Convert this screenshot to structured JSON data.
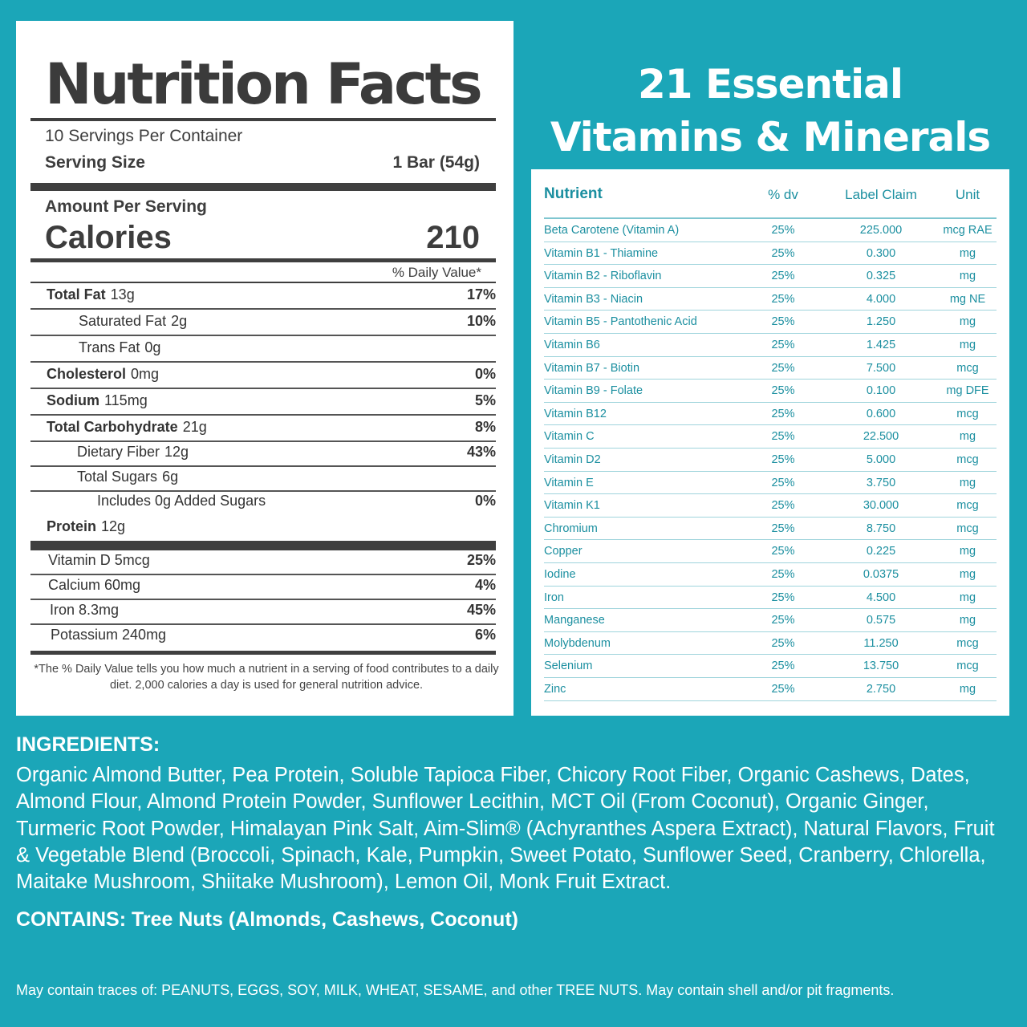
{
  "nutrition_facts": {
    "title": "Nutrition Facts",
    "servings_per_container": "10 Servings Per Container",
    "serving_size_label": "Serving Size",
    "serving_size_value": "1 Bar (54g)",
    "amount_per_serving": "Amount Per Serving",
    "calories_label": "Calories",
    "calories_value": "210",
    "daily_value_header": "% Daily Value*",
    "rows": [
      {
        "label": "Total Fat",
        "amount": "13g",
        "pct": "17%"
      },
      {
        "label": "Saturated Fat",
        "amount": "2g",
        "pct": "10%"
      },
      {
        "label": "Trans Fat",
        "amount": "0g",
        "pct": ""
      },
      {
        "label": "Cholesterol",
        "amount": "0mg",
        "pct": "0%"
      },
      {
        "label": "Sodium",
        "amount": "115mg",
        "pct": "5%"
      },
      {
        "label": "Total Carbohydrate",
        "amount": "21g",
        "pct": "8%"
      },
      {
        "label": "Dietary Fiber",
        "amount": "12g",
        "pct": "43%"
      },
      {
        "label": "Total Sugars",
        "amount": "6g",
        "pct": ""
      },
      {
        "label": "Includes 0g Added Sugars",
        "amount": "",
        "pct": "0%"
      },
      {
        "label": "Protein",
        "amount": "12g",
        "pct": ""
      }
    ],
    "vitamins": [
      {
        "label": "Vitamin D 5mcg",
        "pct": "25%"
      },
      {
        "label": "Calcium 60mg",
        "pct": "4%"
      },
      {
        "label": "Iron 8.3mg",
        "pct": "45%"
      },
      {
        "label": "Potassium 240mg",
        "pct": "6%"
      }
    ],
    "footnote": "*The % Daily Value tells you how much a nutrient in a serving of food contributes to a daily diet. 2,000 calories a day is used for general nutrition advice."
  },
  "vitamins_minerals": {
    "title_line1": "21 Essential",
    "title_line2": "Vitamins & Minerals",
    "headers": {
      "nutrient": "Nutrient",
      "dv": "% dv",
      "claim": "Label Claim",
      "unit": "Unit"
    },
    "rows": [
      {
        "n": "Beta Carotene (Vitamin A)",
        "dv": "25%",
        "claim": "225.000",
        "unit": "mcg RAE"
      },
      {
        "n": "Vitamin B1 - Thiamine",
        "dv": "25%",
        "claim": "0.300",
        "unit": "mg"
      },
      {
        "n": "Vitamin B2 - Riboflavin",
        "dv": "25%",
        "claim": "0.325",
        "unit": "mg"
      },
      {
        "n": "Vitamin B3 - Niacin",
        "dv": "25%",
        "claim": "4.000",
        "unit": "mg NE"
      },
      {
        "n": "Vitamin B5 - Pantothenic Acid",
        "dv": "25%",
        "claim": "1.250",
        "unit": "mg"
      },
      {
        "n": "Vitamin B6",
        "dv": "25%",
        "claim": "1.425",
        "unit": "mg"
      },
      {
        "n": "Vitamin B7 - Biotin",
        "dv": "25%",
        "claim": "7.500",
        "unit": "mcg"
      },
      {
        "n": "Vitamin B9 - Folate",
        "dv": "25%",
        "claim": "0.100",
        "unit": "mg DFE"
      },
      {
        "n": "Vitamin B12",
        "dv": "25%",
        "claim": "0.600",
        "unit": "mcg"
      },
      {
        "n": "Vitamin C",
        "dv": "25%",
        "claim": "22.500",
        "unit": "mg"
      },
      {
        "n": "Vitamin D2",
        "dv": "25%",
        "claim": "5.000",
        "unit": "mcg"
      },
      {
        "n": "Vitamin E",
        "dv": "25%",
        "claim": "3.750",
        "unit": "mg"
      },
      {
        "n": "Vitamin K1",
        "dv": "25%",
        "claim": "30.000",
        "unit": "mcg"
      },
      {
        "n": "Chromium",
        "dv": "25%",
        "claim": "8.750",
        "unit": "mcg"
      },
      {
        "n": "Copper",
        "dv": "25%",
        "claim": "0.225",
        "unit": "mg"
      },
      {
        "n": "Iodine",
        "dv": "25%",
        "claim": "0.0375",
        "unit": "mg"
      },
      {
        "n": "Iron",
        "dv": "25%",
        "claim": "4.500",
        "unit": "mg"
      },
      {
        "n": "Manganese",
        "dv": "25%",
        "claim": "0.575",
        "unit": "mg"
      },
      {
        "n": "Molybdenum",
        "dv": "25%",
        "claim": "11.250",
        "unit": "mcg"
      },
      {
        "n": "Selenium",
        "dv": "25%",
        "claim": "13.750",
        "unit": "mcg"
      },
      {
        "n": "Zinc",
        "dv": "25%",
        "claim": "2.750",
        "unit": "mg"
      }
    ]
  },
  "ingredients": {
    "heading": "INGREDIENTS:",
    "text": "Organic Almond Butter, Pea Protein, Soluble Tapioca Fiber, Chicory Root Fiber, Organic Cashews, Dates, Almond Flour, Almond Protein Powder, Sunflower Lecithin, MCT Oil (From Coconut), Organic Ginger, Turmeric Root Powder, Himalayan Pink Salt, Aim-Slim® (Achyranthes Aspera Extract), Natural Flavors, Fruit & Vegetable Blend (Broccoli, Spinach, Kale, Pumpkin, Sweet Potato, Sunflower Seed, Cranberry, Chlorella, Maitake Mushroom, Shiitake Mushroom), Lemon Oil, Monk Fruit Extract.",
    "contains": "CONTAINS: Tree Nuts (Almonds, Cashews, Coconut)",
    "traces": "May contain traces of: PEANUTS, EGGS, SOY, MILK, WHEAT, SESAME, and other TREE NUTS. May contain shell and/or pit fragments."
  },
  "colors": {
    "background": "#1ba6b8",
    "table_text": "#1b8fa0",
    "label_text": "#3d3d3d"
  }
}
